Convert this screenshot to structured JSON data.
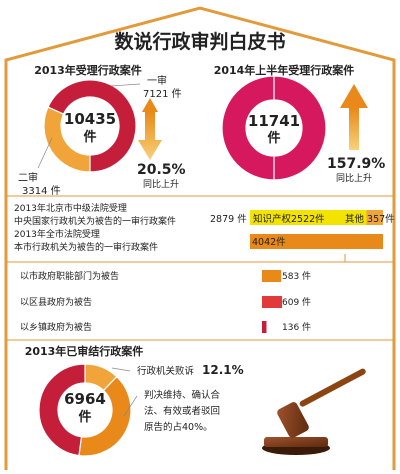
{
  "title": "数说行政审判白皮书",
  "colors": {
    "red": "#c41e3a",
    "magenta": "#d6195e",
    "orange": "#f0a43a",
    "orange_dark": "#e8891a",
    "yellow": "#f2e300",
    "gavel": "#8b4513"
  },
  "chart_data": [
    {
      "type": "pie",
      "title": "2013年受理行政案件",
      "total": "10435",
      "total_unit": "件",
      "slices": [
        {
          "name": "一审",
          "value": 7121,
          "label": "7121 件"
        },
        {
          "name": "二审",
          "value": 3314,
          "label": "3314 件"
        }
      ],
      "change": {
        "value": "20.5%",
        "label": "同比上升"
      }
    },
    {
      "type": "pie",
      "title": "2014年上半年受理行政案件",
      "total": "11741",
      "total_unit": "件",
      "slices": [
        {
          "name": "",
          "value": 11741,
          "label": ""
        }
      ],
      "change": {
        "value": "157.9%",
        "label": "同比上升"
      }
    },
    {
      "type": "bar",
      "title": "2013年北京市中级法院受理 中央国家行政机关为被告的一审行政案件",
      "total_label": "2879 件",
      "categories": [
        "知识产权",
        "其他"
      ],
      "values": [
        2522,
        357
      ],
      "labels": [
        "知识产权2522件",
        "其他 357件"
      ]
    },
    {
      "type": "bar",
      "title": "2013年全市法院受理 本市行政机关为被告的一审行政案件",
      "categories": [
        "本市行政机关为被告"
      ],
      "values": [
        4042
      ],
      "labels": [
        "4042件"
      ],
      "sub": [
        {
          "name": "以市政府职能部门为被告",
          "value": 583,
          "label": "583 件"
        },
        {
          "name": "以区县政府为被告",
          "value": 609,
          "label": "609 件"
        },
        {
          "name": "以乡镇政府为被告",
          "value": 136,
          "label": "136 件"
        }
      ]
    },
    {
      "type": "pie",
      "title": "2013年已审结行政案件",
      "total": "6964",
      "total_unit": "件",
      "slices": [
        {
          "name": "行政机关败诉",
          "value": 12.1,
          "label": "行政机关败诉 12.1%"
        },
        {
          "name": "判决维持、确认合法、有效或者驳回原告的",
          "value": 40,
          "label": "判决维持、确认合法、有效或者驳回原告的占40%。"
        },
        {
          "name": "",
          "value": 47.9,
          "label": ""
        }
      ]
    }
  ],
  "text": {
    "left_title": "2013年受理行政案件",
    "right_title": "2014年上半年受理行政案件",
    "first_instance": "一审",
    "first_value": "7121 件",
    "second_instance": "二审",
    "second_value": "3314 件",
    "center1_num": "10435",
    "center1_unit": "件",
    "center2_num": "11741",
    "center2_unit": "件",
    "change1": "20.5%",
    "change1_label": "同比上升",
    "change2": "157.9%",
    "change2_label": "同比上升",
    "row1_line1": "2013年北京市中级法院受理",
    "row1_line2": "中央国家行政机关为被告的一审行政案件",
    "row1_total": "2879 件",
    "row1_ip": "知识产权2522件",
    "row1_other": "其他 357件",
    "row2_line1": "2013年全市法院受理",
    "row2_line2": "本市行政机关为被告的一审行政案件",
    "row2_val": "4042件",
    "sub1_label": "以市政府职能部门为被告",
    "sub1_val": "583 件",
    "sub2_label": "以区县政府为被告",
    "sub2_val": "609 件",
    "sub3_label": "以乡镇政府为被告",
    "sub3_val": "136 件",
    "bottom_title": "2013年已审结行政案件",
    "center3_num": "6964",
    "center3_unit": "件",
    "lose_label": "行政机关败诉",
    "lose_pct": "12.1%",
    "uphold_l1": "判决维持、确认合",
    "uphold_l2": "法、有效或者驳回",
    "uphold_l3": "原告的占40%。"
  }
}
